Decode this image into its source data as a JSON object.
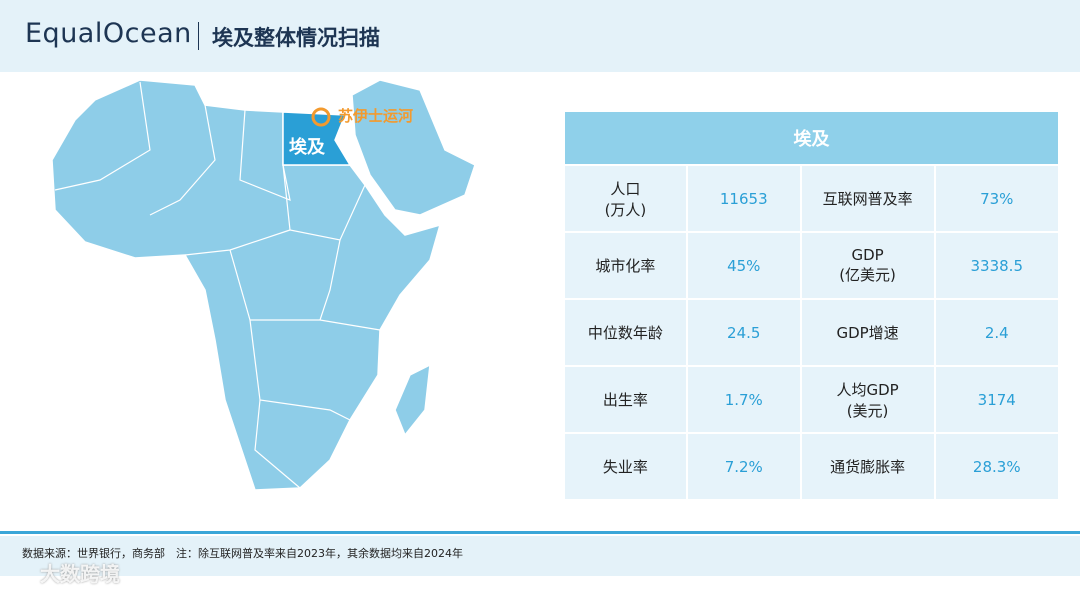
{
  "header": {
    "brand": "EqualOcean",
    "title": "埃及整体情况扫描"
  },
  "map": {
    "country_label": "埃及",
    "canal_label": "苏伊士运河"
  },
  "table": {
    "title": "埃及",
    "rows": [
      [
        "人口\n(万人)",
        "11653",
        "互联网普及率",
        "73%"
      ],
      [
        "城市化率",
        "45%",
        "GDP\n(亿美元)",
        "3338.5"
      ],
      [
        "中位数年龄",
        "24.5",
        "GDP增速",
        "2.4"
      ],
      [
        "出生率",
        "1.7%",
        "人均GDP\n(美元)",
        "3174"
      ],
      [
        "失业率",
        "7.2%",
        "通货膨胀率",
        "28.3%"
      ]
    ]
  },
  "footer": {
    "source": "数据来源：世界银行，商务部　注：除互联网普及率来自2023年，其余数据均来自2024年",
    "watermark": "大数跨境"
  }
}
